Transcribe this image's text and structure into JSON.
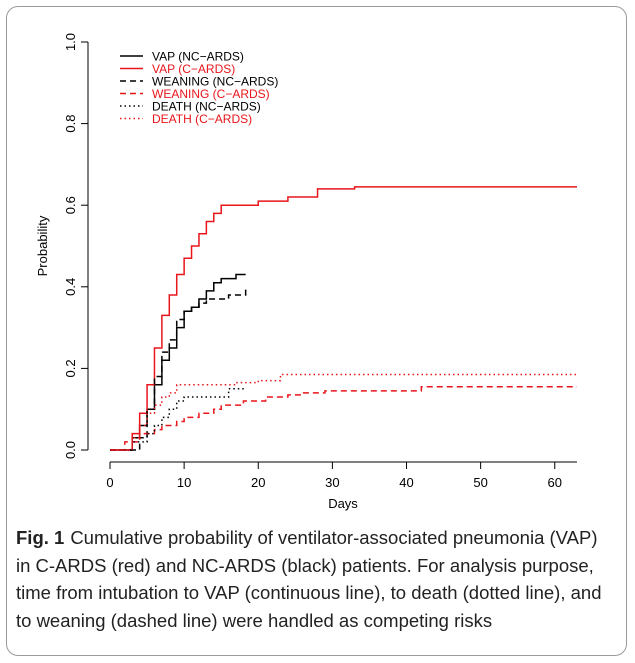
{
  "chart_data": {
    "type": "line",
    "step": true,
    "title": "",
    "xlabel": "Days",
    "ylabel": "Probability",
    "xlim": [
      0,
      63
    ],
    "ylim": [
      0,
      1
    ],
    "xticks": [
      "0",
      "10",
      "20",
      "30",
      "40",
      "50",
      "60"
    ],
    "yticks": [
      "0.0",
      "0.2",
      "0.4",
      "0.6",
      "0.8",
      "1.0"
    ],
    "grid": false,
    "legend_position": "top-left",
    "series": [
      {
        "name": "VAP (NC−ARDS)",
        "color": "#000000",
        "dash": "solid",
        "x": [
          0,
          3,
          4,
          5,
          6,
          7,
          8,
          9,
          10,
          11,
          12,
          13,
          14,
          15,
          16,
          17,
          18.3
        ],
        "y": [
          0,
          0.03,
          0.06,
          0.1,
          0.16,
          0.22,
          0.25,
          0.3,
          0.34,
          0.35,
          0.37,
          0.39,
          0.41,
          0.42,
          0.42,
          0.43,
          0.43
        ]
      },
      {
        "name": "VAP (C−ARDS)",
        "color": "#e8151b",
        "dash": "solid",
        "x": [
          0,
          3,
          4,
          5,
          6,
          7,
          8,
          9,
          10,
          11,
          12,
          13,
          14,
          15,
          17,
          20,
          24,
          28,
          33,
          63
        ],
        "y": [
          0,
          0.04,
          0.09,
          0.16,
          0.25,
          0.33,
          0.38,
          0.43,
          0.47,
          0.5,
          0.53,
          0.56,
          0.58,
          0.6,
          0.6,
          0.61,
          0.62,
          0.64,
          0.645,
          0.645
        ]
      },
      {
        "name": "WEANING (NC−ARDS)",
        "color": "#000000",
        "dash": "dashed",
        "x": [
          0,
          4,
          5,
          6,
          7,
          8,
          9,
          10,
          11,
          12,
          13,
          14,
          16,
          18.3
        ],
        "y": [
          0,
          0.03,
          0.1,
          0.18,
          0.24,
          0.27,
          0.32,
          0.34,
          0.35,
          0.36,
          0.37,
          0.37,
          0.38,
          0.4
        ]
      },
      {
        "name": "WEANING (C−ARDS)",
        "color": "#e8151b",
        "dash": "dashed",
        "x": [
          0,
          2,
          4,
          6,
          7,
          9,
          10,
          12,
          14,
          15,
          18,
          21,
          24,
          26,
          29,
          35,
          42,
          63
        ],
        "y": [
          0,
          0.02,
          0.04,
          0.05,
          0.06,
          0.07,
          0.08,
          0.09,
          0.1,
          0.11,
          0.12,
          0.13,
          0.135,
          0.14,
          0.145,
          0.145,
          0.155,
          0.155
        ]
      },
      {
        "name": "DEATH (NC−ARDS)",
        "color": "#000000",
        "dash": "dotted",
        "x": [
          0,
          3,
          5,
          6,
          7,
          8,
          9,
          10,
          12,
          14,
          16,
          18.3
        ],
        "y": [
          0,
          0.02,
          0.04,
          0.06,
          0.08,
          0.1,
          0.12,
          0.13,
          0.13,
          0.13,
          0.15,
          0.15
        ]
      },
      {
        "name": "DEATH (C−ARDS)",
        "color": "#e8151b",
        "dash": "dotted",
        "x": [
          0,
          3,
          4,
          5,
          6,
          7,
          8,
          9,
          15,
          17,
          20,
          23,
          63
        ],
        "y": [
          0,
          0.03,
          0.06,
          0.09,
          0.11,
          0.13,
          0.14,
          0.16,
          0.16,
          0.165,
          0.17,
          0.185,
          0.185
        ]
      }
    ]
  },
  "caption": {
    "label": "Fig. 1",
    "text": "Cumulative probability of ventilator-associated pneumonia (VAP) in C-ARDS (red) and NC-ARDS (black) patients. For analysis purpose, time from intubation to VAP (continuous line), to death (dotted line), and to weaning (dashed line) were handled as competing risks"
  }
}
